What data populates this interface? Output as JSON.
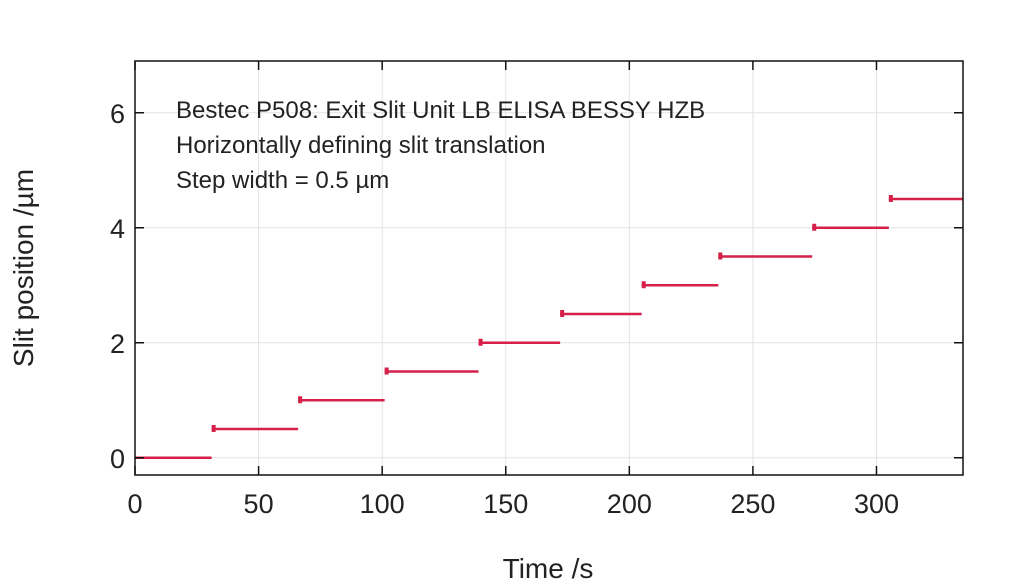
{
  "chart_data": {
    "type": "line",
    "title": "",
    "annotations": [
      "Bestec P508: Exit Slit Unit LB ELISA BESSY HZB",
      "Horizontally defining slit translation",
      "Step width = 0.5 µm"
    ],
    "xlabel": "Time /s",
    "ylabel": "Slit position /µm",
    "xlim": [
      0,
      335
    ],
    "ylim": [
      -0.3,
      6.9
    ],
    "xticks": [
      0,
      50,
      100,
      150,
      200,
      250,
      300
    ],
    "yticks": [
      0,
      2,
      4,
      6
    ],
    "grid": true,
    "legend": "none",
    "series": [
      {
        "color": "#d6204a",
        "steps": [
          {
            "x": [
              0,
              31
            ],
            "y": 0.0
          },
          {
            "x": [
              31,
              66
            ],
            "y": 0.5
          },
          {
            "x": [
              66,
              101
            ],
            "y": 1.0
          },
          {
            "x": [
              101,
              139
            ],
            "y": 1.5
          },
          {
            "x": [
              139,
              172
            ],
            "y": 2.0
          },
          {
            "x": [
              172,
              205
            ],
            "y": 2.5
          },
          {
            "x": [
              205,
              236
            ],
            "y": 3.0
          },
          {
            "x": [
              236,
              274
            ],
            "y": 3.5
          },
          {
            "x": [
              274,
              305
            ],
            "y": 4.0
          },
          {
            "x": [
              305,
              335
            ],
            "y": 4.5
          }
        ]
      }
    ]
  }
}
